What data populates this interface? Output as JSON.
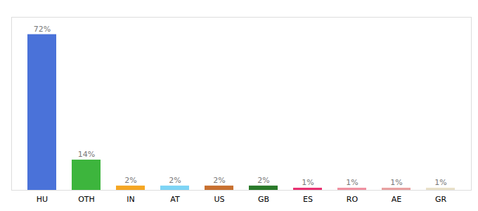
{
  "chart_data": {
    "type": "bar",
    "categories": [
      "HU",
      "OTH",
      "IN",
      "AT",
      "US",
      "GB",
      "ES",
      "RO",
      "AE",
      "GR"
    ],
    "values": [
      72,
      14,
      2,
      2,
      2,
      2,
      1,
      1,
      1,
      1
    ],
    "value_labels": [
      "72%",
      "14%",
      "2%",
      "2%",
      "2%",
      "2%",
      "1%",
      "1%",
      "1%",
      "1%"
    ],
    "colors": [
      "#4a72d9",
      "#3db53d",
      "#f5a623",
      "#7dd4f5",
      "#c87030",
      "#2a7a2a",
      "#e83070",
      "#f090a0",
      "#e8a0a0",
      "#e8e0c8"
    ],
    "ylim": [
      0,
      80
    ],
    "grid": false,
    "data_labels": true,
    "tick_labels": "x"
  }
}
